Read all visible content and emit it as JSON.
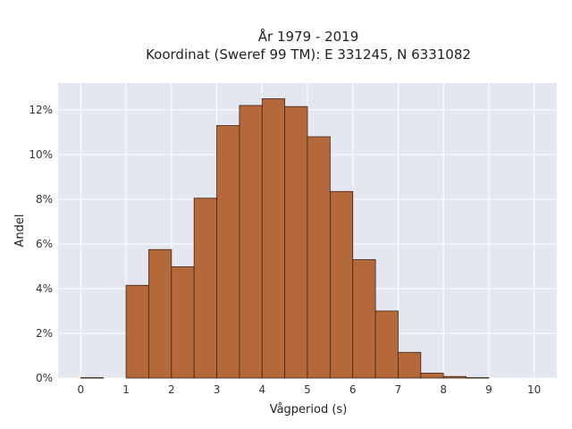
{
  "chart_data": {
    "type": "bar",
    "title": "År 1979 - 2019",
    "subtitle": "Koordinat (Sweref 99 TM): E 331245, N 6331082",
    "xlabel": "Vågperiod (s)",
    "ylabel": "Andel",
    "bin_width": 0.5,
    "bins_start": [
      0,
      0.5,
      1,
      1.5,
      2,
      2.5,
      3,
      3.5,
      4,
      4.5,
      5,
      5.5,
      6,
      6.5,
      7,
      7.5,
      8,
      8.5,
      9,
      9.5
    ],
    "values": [
      0.02,
      0,
      4.15,
      5.75,
      4.98,
      8.05,
      11.3,
      12.2,
      12.5,
      12.15,
      10.8,
      8.35,
      5.3,
      3.0,
      1.15,
      0.22,
      0.07,
      0.02,
      0,
      0
    ],
    "xlim": [
      -0.5,
      10.5
    ],
    "ylim": [
      0,
      13.2
    ],
    "xticks": [
      0,
      1,
      2,
      3,
      4,
      5,
      6,
      7,
      8,
      9,
      10
    ],
    "xtick_labels": [
      "0",
      "1",
      "2",
      "3",
      "4",
      "5",
      "6",
      "7",
      "8",
      "9",
      "10"
    ],
    "yticks": [
      0,
      2,
      4,
      6,
      8,
      10,
      12
    ],
    "ytick_labels": [
      "0%",
      "2%",
      "4%",
      "6%",
      "8%",
      "10%",
      "12%"
    ],
    "grid": true,
    "colors": {
      "bar_fill": "#b5693a",
      "bar_stroke": "#3d2416",
      "plot_bg": "#e5e7f0",
      "grid": "#ffffff"
    }
  }
}
